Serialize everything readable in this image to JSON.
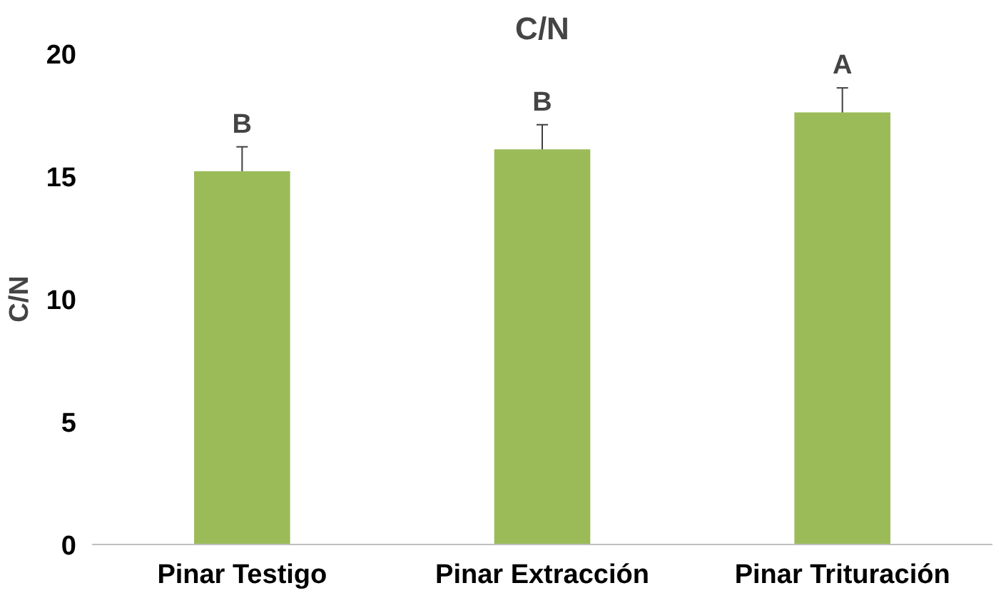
{
  "chart_data": {
    "type": "bar",
    "title": "C/N",
    "ylabel": "C/N",
    "categories": [
      "Pinar Testigo",
      "Pinar Extracción",
      "Pinar Trituración"
    ],
    "values": [
      15.2,
      16.1,
      17.6
    ],
    "color": "#9bbb59",
    "errors": [
      1.0,
      1.0,
      1.0
    ],
    "ylim": [
      0,
      20
    ],
    "yticks": [
      0,
      5,
      10,
      15,
      20
    ],
    "grid": false,
    "annotations": [
      {
        "text": "B",
        "x": "Pinar Testigo",
        "y": 16.2
      },
      {
        "text": "B",
        "x": "Pinar Extracción",
        "y": 17.1
      },
      {
        "text": "A",
        "x": "Pinar Trituración",
        "y": 18.6
      }
    ]
  }
}
